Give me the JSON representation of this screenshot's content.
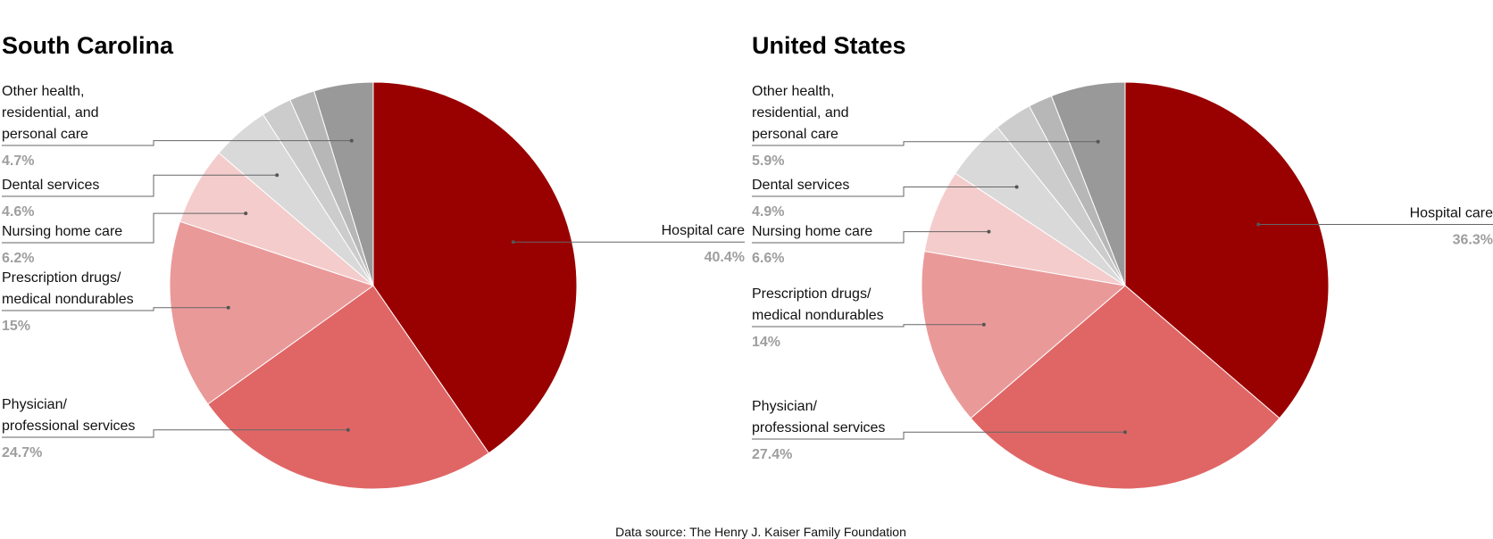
{
  "source": "Data source: The Henry J. Kaiser Family Foundation",
  "colors": {
    "Hospital care": "#990000",
    "Physician/ professional services": "#e06666",
    "Prescription drugs/ medical nondurables": "#ea9999",
    "Nursing home care": "#f4cccc",
    "Dental services": "#d9d9d9",
    "slice6": "#cccccc",
    "slice7": "#b7b7b7",
    "Other health, residential, and personal care": "#999999"
  },
  "chart_data": [
    {
      "type": "pie",
      "title": "South Carolina",
      "slices": [
        {
          "name": "Hospital care",
          "lines": [
            "Hospital care"
          ],
          "value": 40.4,
          "pct_label": "40.4%",
          "color_key": "Hospital care"
        },
        {
          "name": "Physician/ professional services",
          "lines": [
            "Physician/",
            "professional services"
          ],
          "value": 24.7,
          "pct_label": "24.7%",
          "color_key": "Physician/ professional services"
        },
        {
          "name": "Prescription drugs/ medical nondurables",
          "lines": [
            "Prescription drugs/",
            "medical nondurables"
          ],
          "value": 15,
          "pct_label": "15%",
          "color_key": "Prescription drugs/ medical nondurables"
        },
        {
          "name": "Nursing home care",
          "lines": [
            "Nursing home care"
          ],
          "value": 6.2,
          "pct_label": "6.2%",
          "color_key": "Nursing home care"
        },
        {
          "name": "Dental services",
          "lines": [
            "Dental services"
          ],
          "value": 4.6,
          "pct_label": "4.6%",
          "color_key": "Dental services"
        },
        {
          "name": "",
          "lines": [],
          "value": 2.4,
          "pct_label": "",
          "color_key": "slice6"
        },
        {
          "name": "",
          "lines": [],
          "value": 2.0,
          "pct_label": "",
          "color_key": "slice7"
        },
        {
          "name": "Other health, residential, and personal care",
          "lines": [
            "Other health,",
            "residential, and",
            "personal care"
          ],
          "value": 4.7,
          "pct_label": "4.7%",
          "color_key": "Other health, residential, and personal care"
        }
      ]
    },
    {
      "type": "pie",
      "title": "United States",
      "slices": [
        {
          "name": "Hospital care",
          "lines": [
            "Hospital care"
          ],
          "value": 36.3,
          "pct_label": "36.3%",
          "color_key": "Hospital care"
        },
        {
          "name": "Physician/ professional services",
          "lines": [
            "Physician/",
            "professional services"
          ],
          "value": 27.4,
          "pct_label": "27.4%",
          "color_key": "Physician/ professional services"
        },
        {
          "name": "Prescription drugs/ medical nondurables",
          "lines": [
            "Prescription drugs/",
            "medical nondurables"
          ],
          "value": 14,
          "pct_label": "14%",
          "color_key": "Prescription drugs/ medical nondurables"
        },
        {
          "name": "Nursing home care",
          "lines": [
            "Nursing home care"
          ],
          "value": 6.6,
          "pct_label": "6.6%",
          "color_key": "Nursing home care"
        },
        {
          "name": "Dental services",
          "lines": [
            "Dental services"
          ],
          "value": 4.9,
          "pct_label": "4.9%",
          "color_key": "Dental services"
        },
        {
          "name": "",
          "lines": [],
          "value": 3.0,
          "pct_label": "",
          "color_key": "slice6"
        },
        {
          "name": "",
          "lines": [],
          "value": 1.9,
          "pct_label": "",
          "color_key": "slice7"
        },
        {
          "name": "Other health, residential, and personal care",
          "lines": [
            "Other health,",
            "residential, and",
            "personal care"
          ],
          "value": 5.9,
          "pct_label": "5.9%",
          "color_key": "Other health, residential, and personal care"
        }
      ]
    }
  ]
}
